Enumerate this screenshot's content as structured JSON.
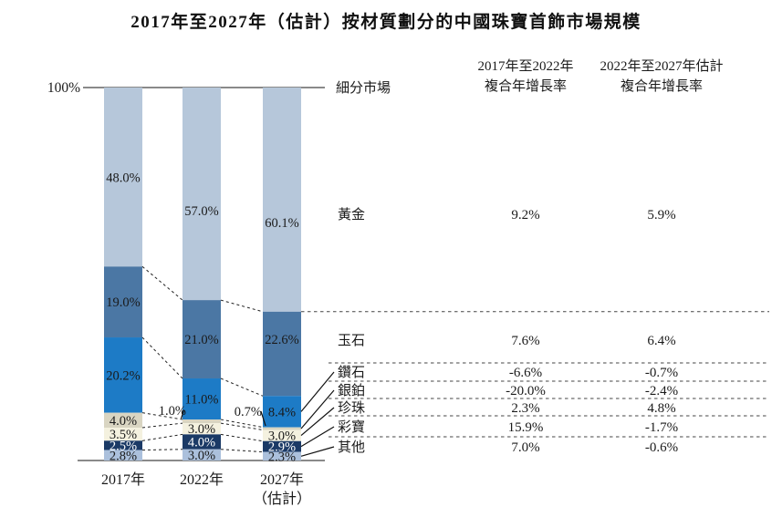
{
  "title": "2017年至2027年（估計）按材質劃分的中國珠寶首飾市場規模",
  "y_axis": {
    "top_label": "100%"
  },
  "x_axis": {
    "category_lines": [
      [
        "2017年"
      ],
      [
        "2022年"
      ],
      [
        "2027年",
        "（估計）"
      ]
    ]
  },
  "table": {
    "segment_column_header": "細分市場",
    "cagr1_header_lines": [
      "2017年至2022年",
      "複合年增長率"
    ],
    "cagr2_header_lines": [
      "2022年至2027年估計",
      "複合年增長率"
    ]
  },
  "chart_data": {
    "type": "bar",
    "subtype": "stacked-100-percent",
    "title": "2017年至2027年（估計）按材質劃分的中國珠寶首飾市場規模",
    "categories": [
      "2017年",
      "2022年",
      "2027年（估計）"
    ],
    "value_unit": "%",
    "ylim": [
      0,
      100
    ],
    "grid": false,
    "legend_position": "table-right",
    "series": [
      {
        "name": "黃金",
        "values": [
          48.0,
          57.0,
          60.1
        ],
        "cagr_2017_2022": "9.2%",
        "cagr_2022_2027_est": "5.9%",
        "color": "#b6c7da",
        "label_color": "#1a1a1a"
      },
      {
        "name": "玉石",
        "values": [
          19.0,
          21.0,
          22.6
        ],
        "cagr_2017_2022": "7.6%",
        "cagr_2022_2027_est": "6.4%",
        "color": "#4b77a4",
        "label_color": "#1a1a1a"
      },
      {
        "name": "鑽石",
        "values": [
          20.2,
          11.0,
          8.4
        ],
        "cagr_2017_2022": "-6.6%",
        "cagr_2022_2027_est": "-0.7%",
        "color": "#1d7bc6",
        "label_color": "#1a1a1a"
      },
      {
        "name": "銀鉑",
        "values": [
          4.0,
          1.0,
          0.7
        ],
        "cagr_2017_2022": "-20.0%",
        "cagr_2022_2027_est": "-2.4%",
        "color": "#d9d5c2",
        "label_color": "#1a1a1a"
      },
      {
        "name": "珍珠",
        "values": [
          3.5,
          3.0,
          3.0
        ],
        "cagr_2017_2022": "2.3%",
        "cagr_2022_2027_est": "4.8%",
        "color": "#f4f1df",
        "label_color": "#1a1a1a"
      },
      {
        "name": "彩寶",
        "values": [
          2.5,
          4.0,
          2.9
        ],
        "cagr_2017_2022": "15.9%",
        "cagr_2022_2027_est": "-1.7%",
        "color": "#1b3a66",
        "label_color": "#ffffff"
      },
      {
        "name": "其他",
        "values": [
          2.8,
          3.0,
          2.3
        ],
        "cagr_2017_2022": "7.0%",
        "cagr_2022_2027_est": "-0.6%",
        "color": "#abc0dc",
        "label_color": "#1a1a1a"
      }
    ]
  }
}
